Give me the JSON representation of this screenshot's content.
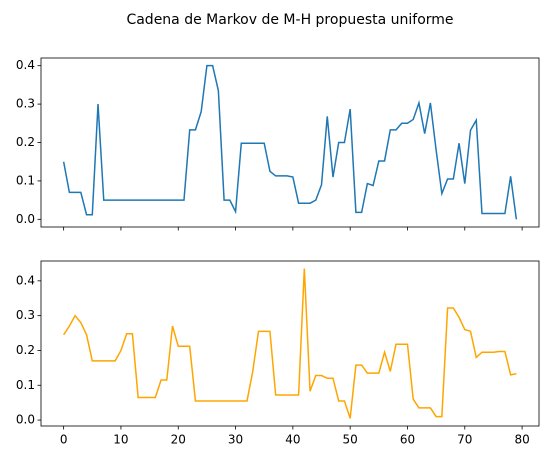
{
  "chart_data": [
    {
      "type": "line",
      "title": "Cadena de Markov de M-H propuesta uniforme",
      "x": [
        0,
        1,
        2,
        3,
        4,
        5,
        6,
        7,
        8,
        9,
        10,
        11,
        12,
        13,
        14,
        15,
        16,
        17,
        18,
        19,
        20,
        21,
        22,
        23,
        24,
        25,
        26,
        27,
        28,
        29,
        30,
        31,
        32,
        33,
        34,
        35,
        36,
        37,
        38,
        39,
        40,
        41,
        42,
        43,
        44,
        45,
        46,
        47,
        48,
        49,
        50,
        51,
        52,
        53,
        54,
        55,
        56,
        57,
        58,
        59,
        60,
        61,
        62,
        63,
        64,
        65,
        66,
        67,
        68,
        69,
        70,
        71,
        72,
        73,
        74,
        75,
        76,
        77,
        78,
        79
      ],
      "series": [
        {
          "color": "#1f77b4",
          "values": [
            0.15,
            0.07,
            0.07,
            0.07,
            0.012,
            0.012,
            0.3,
            0.05,
            0.05,
            0.05,
            0.05,
            0.05,
            0.05,
            0.05,
            0.05,
            0.05,
            0.05,
            0.05,
            0.05,
            0.05,
            0.05,
            0.05,
            0.233,
            0.233,
            0.28,
            0.4,
            0.4,
            0.335,
            0.05,
            0.05,
            0.02,
            0.198,
            0.198,
            0.198,
            0.198,
            0.198,
            0.125,
            0.113,
            0.113,
            0.113,
            0.11,
            0.042,
            0.042,
            0.042,
            0.05,
            0.09,
            0.268,
            0.11,
            0.2,
            0.2,
            0.287,
            0.018,
            0.018,
            0.093,
            0.088,
            0.152,
            0.152,
            0.233,
            0.233,
            0.25,
            0.25,
            0.26,
            0.303,
            0.223,
            0.303,
            0.18,
            0.067,
            0.105,
            0.105,
            0.198,
            0.093,
            0.232,
            0.258,
            0.015,
            0.015,
            0.015,
            0.015,
            0.015,
            0.112,
            0.0
          ]
        }
      ],
      "xlim": [
        -3.95,
        82.95
      ],
      "xticks": [
        0,
        10,
        20,
        30,
        40,
        50,
        60,
        70,
        80
      ],
      "ylim": [
        -0.02,
        0.42
      ],
      "yticks": [
        {
          "value": 0,
          "label": "0.0"
        },
        0.1,
        0.2,
        0.3,
        0.4
      ]
    },
    {
      "type": "line",
      "x": [
        0,
        1,
        2,
        3,
        4,
        5,
        6,
        7,
        8,
        9,
        10,
        11,
        12,
        13,
        14,
        15,
        16,
        17,
        18,
        19,
        20,
        21,
        22,
        23,
        24,
        25,
        26,
        27,
        28,
        29,
        30,
        31,
        32,
        33,
        34,
        35,
        36,
        37,
        38,
        39,
        40,
        41,
        42,
        43,
        44,
        45,
        46,
        47,
        48,
        49,
        50,
        51,
        52,
        53,
        54,
        55,
        56,
        57,
        58,
        59,
        60,
        61,
        62,
        63,
        64,
        65,
        66,
        67,
        68,
        69,
        70,
        71,
        72,
        73,
        74,
        75,
        76,
        77,
        78,
        79
      ],
      "series": [
        {
          "color": "#ffa500",
          "values": [
            0.245,
            0.27,
            0.3,
            0.28,
            0.245,
            0.17,
            0.17,
            0.17,
            0.17,
            0.17,
            0.2,
            0.248,
            0.248,
            0.065,
            0.065,
            0.065,
            0.065,
            0.115,
            0.115,
            0.27,
            0.212,
            0.212,
            0.212,
            0.055,
            0.055,
            0.055,
            0.055,
            0.055,
            0.055,
            0.055,
            0.055,
            0.055,
            0.055,
            0.14,
            0.255,
            0.255,
            0.255,
            0.072,
            0.072,
            0.072,
            0.072,
            0.072,
            0.435,
            0.083,
            0.128,
            0.128,
            0.12,
            0.12,
            0.055,
            0.055,
            0.005,
            0.158,
            0.158,
            0.135,
            0.135,
            0.135,
            0.195,
            0.14,
            0.218,
            0.218,
            0.218,
            0.06,
            0.035,
            0.035,
            0.035,
            0.01,
            0.01,
            0.322,
            0.322,
            0.295,
            0.26,
            0.255,
            0.18,
            0.195,
            0.195,
            0.195,
            0.197,
            0.197,
            0.13,
            0.133
          ]
        }
      ],
      "xlim": [
        -3.95,
        82.95
      ],
      "xticks": [
        0,
        10,
        20,
        30,
        40,
        50,
        60,
        70,
        80
      ],
      "ylim": [
        -0.017,
        0.457
      ],
      "yticks": [
        {
          "value": 0,
          "label": "0.0"
        },
        0.1,
        0.2,
        0.3,
        0.4
      ]
    }
  ]
}
